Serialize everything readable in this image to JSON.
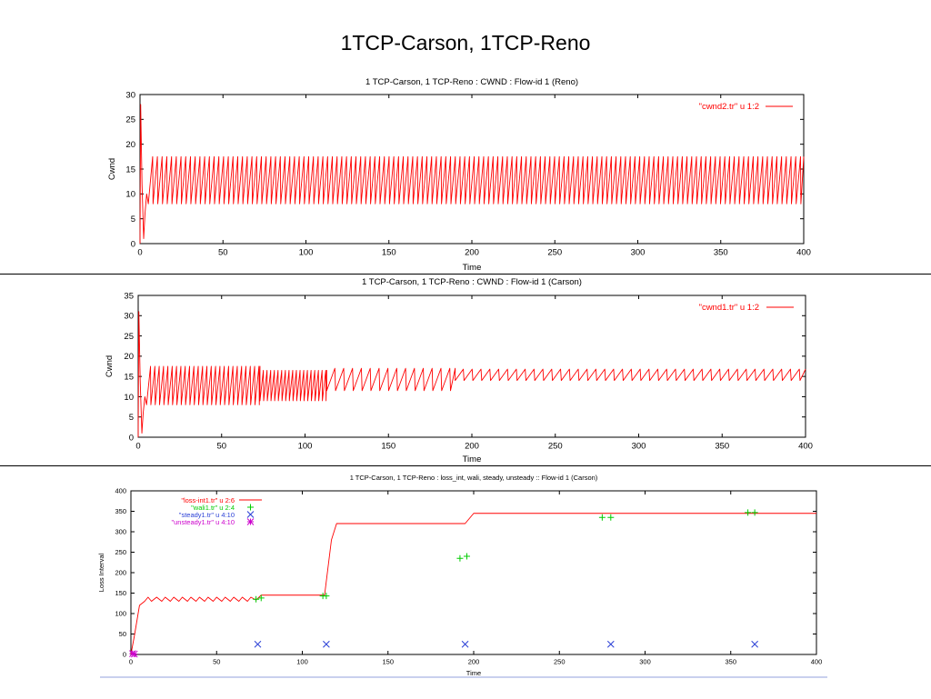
{
  "slide_title": "1TCP-Carson, 1TCP-Reno",
  "chart_data": [
    {
      "type": "line",
      "title": "1 TCP-Carson, 1 TCP-Reno : CWND : Flow-id 1 (Reno)",
      "xlabel": "Time",
      "ylabel": "Cwnd",
      "xlim": [
        0,
        400
      ],
      "ylim": [
        0,
        30
      ],
      "xticks": [
        0,
        50,
        100,
        150,
        200,
        250,
        300,
        350,
        400
      ],
      "yticks": [
        0,
        5,
        10,
        15,
        20,
        25,
        30
      ],
      "legend_position": "top-right",
      "series": [
        {
          "name": "\"cwnd2.tr\" u 1:2",
          "color": "#ff0000",
          "style": "line",
          "pattern": {
            "startup": [
              [
                0,
                0
              ],
              [
                0.4,
                28
              ],
              [
                1.2,
                12
              ],
              [
                2.2,
                1
              ],
              [
                3,
                6
              ],
              [
                4,
                10
              ],
              [
                5,
                8
              ]
            ],
            "sawtooth": [
              {
                "from": 5,
                "to": 400,
                "period": 2.85,
                "low": 8,
                "high": 17.5
              }
            ]
          }
        }
      ]
    },
    {
      "type": "line",
      "title": "1 TCP-Carson, 1 TCP-Reno : CWND : Flow-id 1 (Carson)",
      "xlabel": "Time",
      "ylabel": "Cwnd",
      "xlim": [
        0,
        400
      ],
      "ylim": [
        0,
        35
      ],
      "xticks": [
        0,
        50,
        100,
        150,
        200,
        250,
        300,
        350,
        400
      ],
      "yticks": [
        0,
        5,
        10,
        15,
        20,
        25,
        30,
        35
      ],
      "legend_position": "top-right",
      "series": [
        {
          "name": "\"cwnd1.tr\" u 1:2",
          "color": "#ff0000",
          "style": "line",
          "pattern": {
            "startup": [
              [
                0,
                0
              ],
              [
                0.4,
                31
              ],
              [
                1.2,
                14
              ],
              [
                2.2,
                1
              ],
              [
                3,
                6
              ],
              [
                4,
                10
              ],
              [
                5,
                8
              ]
            ],
            "sawtooth": [
              {
                "from": 5,
                "to": 73,
                "period": 2.6,
                "low": 8,
                "high": 17.5
              },
              {
                "from": 73,
                "to": 113,
                "period": 2.2,
                "low": 9,
                "high": 16.5
              },
              {
                "from": 113,
                "to": 190,
                "period": 5.3,
                "low": 11.5,
                "high": 17
              },
              {
                "from": 190,
                "to": 400,
                "period": 5.3,
                "low": 14,
                "high": 16.8
              }
            ]
          }
        }
      ]
    },
    {
      "type": "line",
      "title": "1 TCP-Carson, 1 TCP-Reno : loss_int, wali, steady, unsteady :: Flow-id 1 (Carson)",
      "xlabel": "Time",
      "ylabel": "Loss Interval",
      "xlim": [
        0,
        400
      ],
      "ylim": [
        0,
        400
      ],
      "xticks": [
        0,
        50,
        100,
        150,
        200,
        250,
        300,
        350,
        400
      ],
      "yticks": [
        0,
        50,
        100,
        150,
        200,
        250,
        300,
        350,
        400
      ],
      "legend_position": "top-left",
      "series": [
        {
          "name": "\"loss-int1.tr\" u 2:6",
          "color": "#ff0000",
          "style": "line",
          "points": [
            [
              0,
              0
            ],
            [
              2,
              45
            ],
            [
              5,
              120
            ],
            [
              8,
              130
            ],
            [
              10,
              140
            ],
            [
              12,
              130
            ],
            [
              15,
              140
            ],
            [
              18,
              130
            ],
            [
              20,
              140
            ],
            [
              23,
              130
            ],
            [
              25,
              140
            ],
            [
              28,
              130
            ],
            [
              30,
              140
            ],
            [
              33,
              130
            ],
            [
              35,
              140
            ],
            [
              38,
              130
            ],
            [
              40,
              140
            ],
            [
              43,
              130
            ],
            [
              45,
              140
            ],
            [
              48,
              130
            ],
            [
              50,
              140
            ],
            [
              53,
              130
            ],
            [
              55,
              140
            ],
            [
              58,
              130
            ],
            [
              60,
              140
            ],
            [
              63,
              130
            ],
            [
              65,
              140
            ],
            [
              68,
              130
            ],
            [
              70,
              140
            ],
            [
              73,
              133
            ],
            [
              76,
              145
            ],
            [
              113,
              145
            ],
            [
              117,
              280
            ],
            [
              120,
              320
            ],
            [
              195,
              320
            ],
            [
              200,
              345
            ],
            [
              400,
              345
            ]
          ]
        },
        {
          "name": "\"wali1.tr\" u 2:4",
          "color": "#00cc00",
          "style": "plus",
          "points": [
            [
              73,
              135
            ],
            [
              76,
              138
            ],
            [
              112,
              143
            ],
            [
              114,
              143
            ],
            [
              192,
              235
            ],
            [
              196,
              240
            ],
            [
              275,
              335
            ],
            [
              280,
              335
            ],
            [
              360,
              347
            ],
            [
              364,
              347
            ]
          ]
        },
        {
          "name": "\"steady1.tr\" u 4:10",
          "color": "#2a3fd6",
          "style": "cross",
          "points": [
            [
              74,
              25
            ],
            [
              114,
              25
            ],
            [
              195,
              25
            ],
            [
              280,
              25
            ],
            [
              364,
              25
            ]
          ]
        },
        {
          "name": "\"unsteady1.tr\" u 4:10",
          "color": "#cc00cc",
          "style": "star",
          "points": [
            [
              1,
              2
            ],
            [
              2,
              1
            ]
          ]
        }
      ]
    }
  ]
}
